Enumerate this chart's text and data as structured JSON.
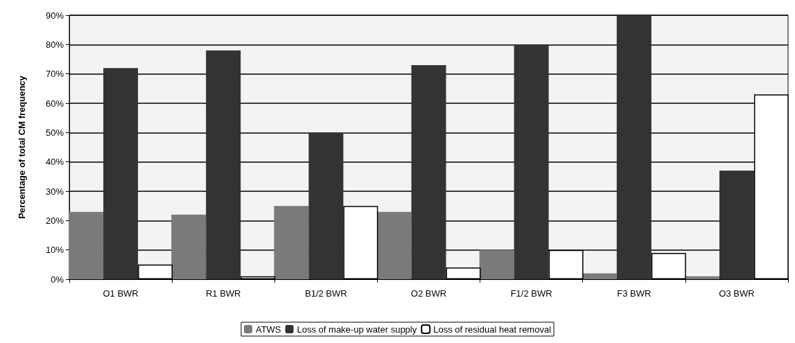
{
  "chart_data": {
    "type": "bar",
    "ylabel": "Percentage of total CM frequency",
    "categories": [
      "O1 BWR",
      "R1 BWR",
      "B1/2 BWR",
      "O2 BWR",
      "F1/2 BWR",
      "F3 BWR",
      "O3 BWR"
    ],
    "series": [
      {
        "name": "ATWS",
        "color": "#7a7a7a",
        "values": [
          23,
          22,
          25,
          23,
          10,
          2,
          1
        ]
      },
      {
        "name": "Loss of make-up water supply",
        "color": "#333333",
        "values": [
          72,
          78,
          50,
          73,
          80,
          90,
          37
        ]
      },
      {
        "name": "Loss of residual heat removal",
        "color": "#ffffff",
        "values": [
          5,
          1,
          25,
          4,
          10,
          9,
          63
        ]
      }
    ],
    "ylim": [
      0,
      90
    ],
    "yticks": [
      {
        "value": 0,
        "label": "0%"
      },
      {
        "value": 10,
        "label": "10%"
      },
      {
        "value": 20,
        "label": "20%"
      },
      {
        "value": 30,
        "label": "30%"
      },
      {
        "value": 40,
        "label": "40%"
      },
      {
        "value": 50,
        "label": "50%"
      },
      {
        "value": 60,
        "label": "60%"
      },
      {
        "value": 70,
        "label": "70%"
      },
      {
        "value": 80,
        "label": "80%"
      },
      {
        "value": 90,
        "label": "90%"
      }
    ],
    "grid": "y",
    "legend": "bottom"
  }
}
